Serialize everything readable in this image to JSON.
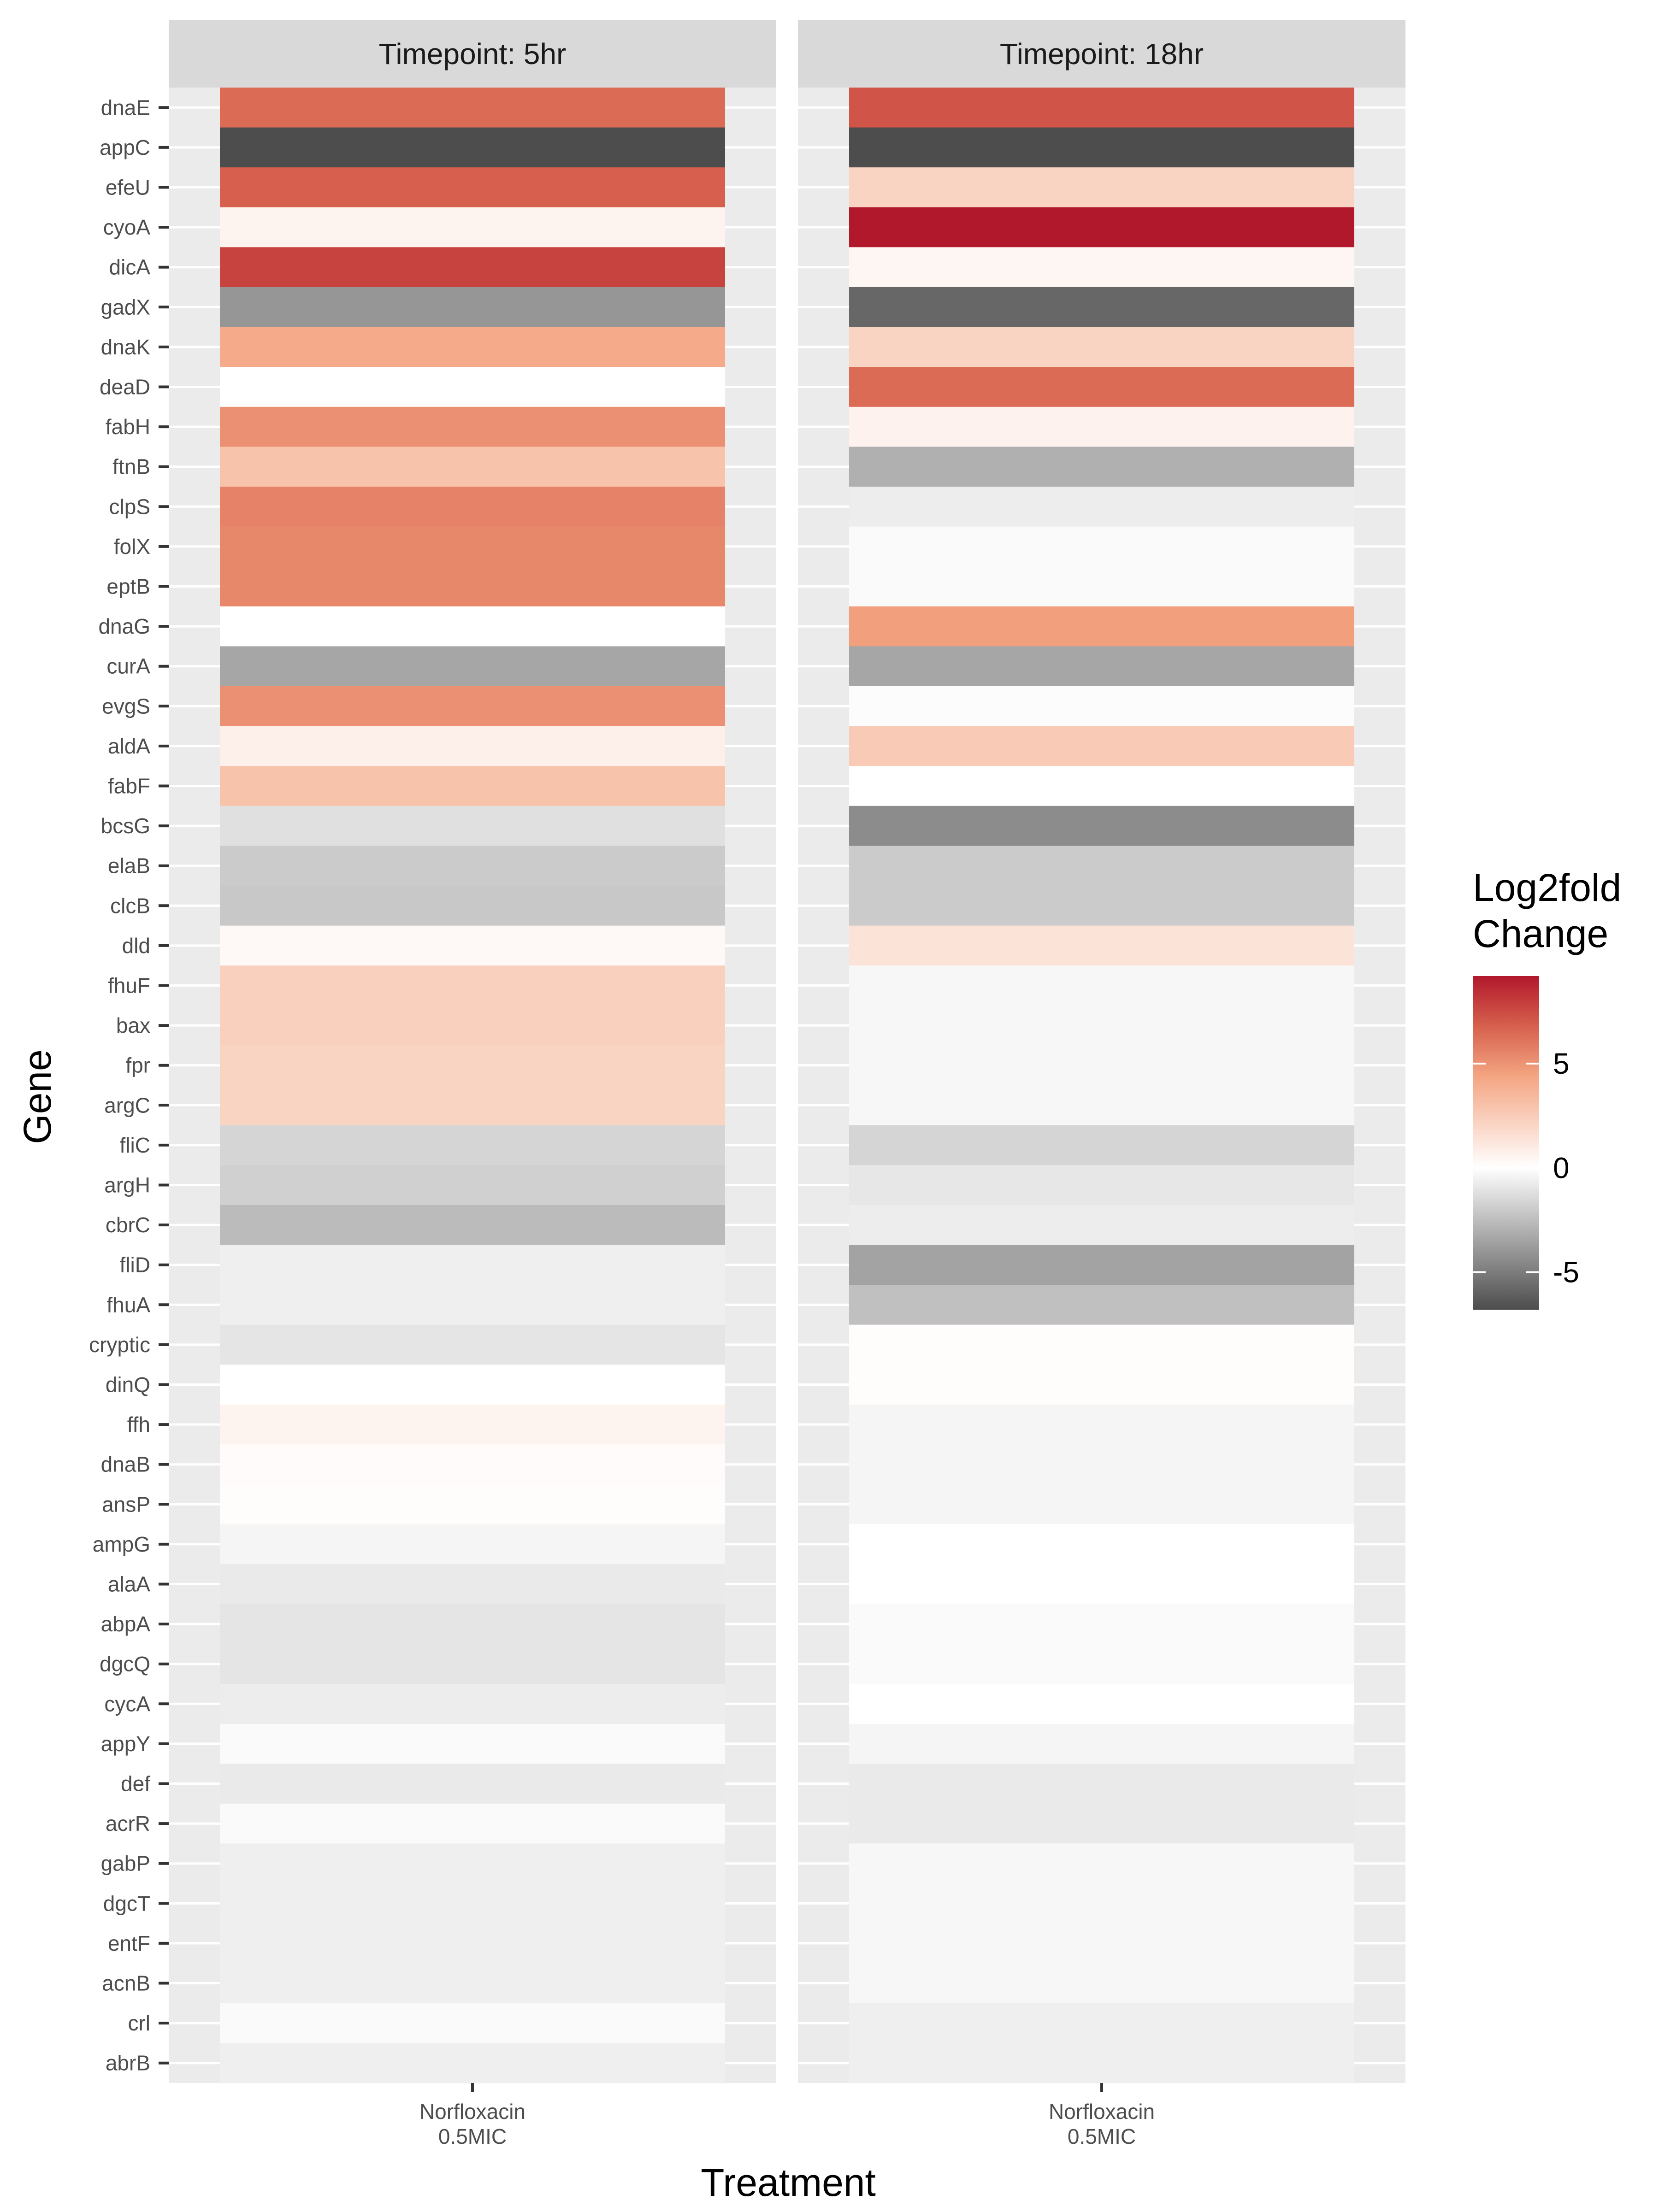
{
  "chart_data": {
    "type": "heatmap",
    "xlabel": "Treatment",
    "ylabel": "Gene",
    "panels": [
      {
        "name": "Timepoint: 5hr",
        "x_tick": [
          "Norfloxacin",
          "0.5MIC"
        ]
      },
      {
        "name": "Timepoint: 18hr",
        "x_tick": [
          "Norfloxacin",
          "0.5MIC"
        ]
      }
    ],
    "genes": [
      "dnaE",
      "appC",
      "efeU",
      "cyoA",
      "dicA",
      "gadX",
      "dnaK",
      "deaD",
      "fabH",
      "ftnB",
      "clpS",
      "folX",
      "eptB",
      "dnaG",
      "curA",
      "evgS",
      "aldA",
      "fabF",
      "bcsG",
      "elaB",
      "clcB",
      "dld",
      "fhuF",
      "bax",
      "fpr",
      "argC",
      "fliC",
      "argH",
      "cbrC",
      "fliD",
      "fhuA",
      "cryptic",
      "dinQ",
      "ffh",
      "dnaB",
      "ansP",
      "ampG",
      "alaA",
      "abpA",
      "dgcQ",
      "cycA",
      "appY",
      "def",
      "acrR",
      "gabP",
      "dgcT",
      "entF",
      "acnB",
      "crl",
      "abrB"
    ],
    "values_5hr": [
      6.8,
      -6.8,
      7.2,
      0.6,
      8.0,
      -4.0,
      4.5,
      0.0,
      5.5,
      3.2,
      6.0,
      5.8,
      5.8,
      0.0,
      -3.4,
      5.5,
      0.8,
      3.2,
      -1.2,
      -2.0,
      -2.1,
      0.3,
      2.5,
      2.5,
      2.3,
      2.3,
      -1.6,
      -1.8,
      -2.6,
      -0.6,
      -0.6,
      -1.0,
      0.0,
      0.6,
      0.2,
      0.1,
      -0.4,
      -0.8,
      -1.0,
      -1.0,
      -0.7,
      -0.2,
      -0.8,
      -0.2,
      -0.6,
      -0.6,
      -0.6,
      -0.6,
      -0.2,
      -0.6
    ],
    "values_18hr": [
      7.5,
      -6.8,
      2.3,
      9.2,
      0.5,
      -5.8,
      2.3,
      6.8,
      0.7,
      -3.0,
      -0.7,
      -0.2,
      -0.2,
      5.0,
      -3.4,
      -0.1,
      2.8,
      0.0,
      -4.4,
      -2.0,
      -2.0,
      1.5,
      -0.3,
      -0.3,
      -0.3,
      -0.3,
      -1.6,
      -0.9,
      -0.7,
      -3.5,
      -2.4,
      0.1,
      0.1,
      -0.4,
      -0.4,
      -0.4,
      0.0,
      0.0,
      -0.2,
      -0.2,
      0.0,
      -0.4,
      -0.8,
      -0.8,
      -0.3,
      -0.3,
      -0.3,
      -0.3,
      -0.6,
      -0.6
    ],
    "color_scale": {
      "low": "#4d4d4d",
      "mid": "#ffffff",
      "high": "#b2182b",
      "min": -6.8,
      "max": 9.2,
      "midpoint": 0
    },
    "legend": {
      "title_lines": [
        "Log2fold",
        "Change"
      ],
      "breaks": [
        5,
        0,
        -5
      ],
      "break_labels": [
        "5",
        "0",
        "-5"
      ],
      "placement": "right"
    },
    "grid": true
  }
}
